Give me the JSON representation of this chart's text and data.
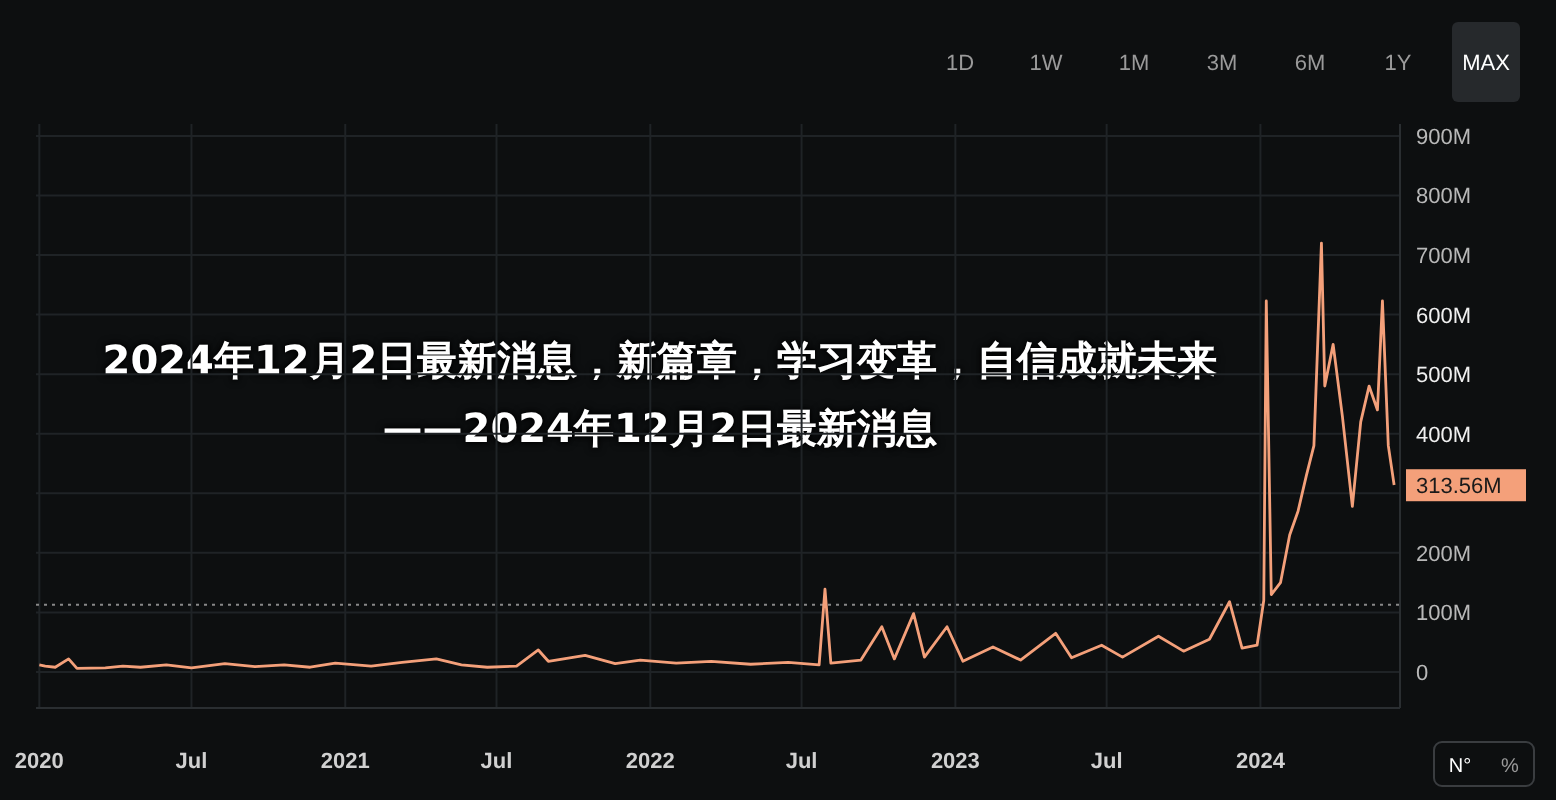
{
  "chart_data": {
    "type": "line",
    "title": "2024年12月2日最新消息，新篇章，学习变革，自信成就未来——2024年12月2日最新消息",
    "x": [
      "2020-01-01",
      "2020-01-08",
      "2020-01-20",
      "2020-02-05",
      "2020-02-15",
      "2020-03-20",
      "2020-04-10",
      "2020-05-01",
      "2020-06-01",
      "2020-07-01",
      "2020-08-10",
      "2020-09-15",
      "2020-10-20",
      "2020-11-20",
      "2020-12-20",
      "2021-02-01",
      "2021-03-10",
      "2021-04-20",
      "2021-05-20",
      "2021-06-20",
      "2021-07-25",
      "2021-08-20",
      "2021-09-01",
      "2021-10-15",
      "2021-11-20",
      "2021-12-20",
      "2022-02-01",
      "2022-03-15",
      "2022-05-01",
      "2022-06-15",
      "2022-07-22",
      "2022-07-29",
      "2022-08-05",
      "2022-09-10",
      "2022-10-05",
      "2022-10-20",
      "2022-11-12",
      "2022-11-25",
      "2022-12-22",
      "2023-01-10",
      "2023-02-15",
      "2023-03-20",
      "2023-05-01",
      "2023-05-20",
      "2023-06-25",
      "2023-07-20",
      "2023-09-01",
      "2023-10-01",
      "2023-11-01",
      "2023-11-25",
      "2023-12-10",
      "2023-12-28",
      "2024-01-05",
      "2024-01-08",
      "2024-01-14",
      "2024-01-25",
      "2024-02-05",
      "2024-02-15",
      "2024-02-25",
      "2024-03-05",
      "2024-03-14",
      "2024-03-18",
      "2024-03-28",
      "2024-04-08",
      "2024-04-20",
      "2024-04-30",
      "2024-05-10",
      "2024-05-20",
      "2024-05-26",
      "2024-06-02",
      "2024-06-09"
    ],
    "series": [
      {
        "color": "#f4a07a",
        "values": [
          12,
          10,
          8,
          22,
          6,
          7,
          10,
          8,
          12,
          7,
          14,
          9,
          12,
          8,
          15,
          10,
          16,
          22,
          12,
          8,
          10,
          37,
          18,
          28,
          14,
          20,
          15,
          18,
          13,
          16,
          12,
          139,
          15,
          20,
          76,
          22,
          98,
          25,
          76,
          18,
          42,
          20,
          65,
          24,
          45,
          25,
          60,
          35,
          55,
          118,
          40,
          45,
          120,
          623,
          130,
          150,
          230,
          270,
          330,
          380,
          720,
          480,
          550,
          430,
          278,
          420,
          480,
          440,
          623,
          380,
          314
        ]
      }
    ],
    "xlim": [
      "2019-12-28",
      "2024-06-16"
    ],
    "xticks": [
      {
        "value": "2020-01-01",
        "label": "2020"
      },
      {
        "value": "2020-07-01",
        "label": "Jul"
      },
      {
        "value": "2021-01-01",
        "label": "2021"
      },
      {
        "value": "2021-07-01",
        "label": "Jul"
      },
      {
        "value": "2022-01-01",
        "label": "2022"
      },
      {
        "value": "2022-07-01",
        "label": "Jul"
      },
      {
        "value": "2023-01-01",
        "label": "2023"
      },
      {
        "value": "2023-07-01",
        "label": "Jul"
      },
      {
        "value": "2024-01-01",
        "label": "2024"
      }
    ],
    "ylim": [
      0,
      920
    ],
    "yticks": [
      0,
      {
        "value": 100,
        "label": "100M"
      },
      {
        "value": 200,
        "label": "200M"
      },
      {
        "value": 300,
        "label": null
      },
      {
        "value": 400,
        "label": "400M"
      },
      {
        "value": 500,
        "label": "500M"
      },
      {
        "value": 600,
        "label": "600M"
      },
      {
        "value": 700,
        "label": "700M"
      },
      {
        "value": 800,
        "label": "800M"
      },
      {
        "value": 900,
        "label": "900M"
      }
    ],
    "grid": true,
    "marker": "none",
    "line_style": "solid",
    "ref_lines": [
      {
        "axis": "y",
        "value": 113,
        "color": "#888888",
        "line_style": "dotted"
      }
    ],
    "annotations": [
      "1D",
      "1W",
      "1M",
      "3M",
      "6M",
      "1Y",
      "MAX",
      "N°",
      "%",
      {
        "text": "313.56M",
        "x": "2024-06-09",
        "y": 313.56
      }
    ]
  }
}
